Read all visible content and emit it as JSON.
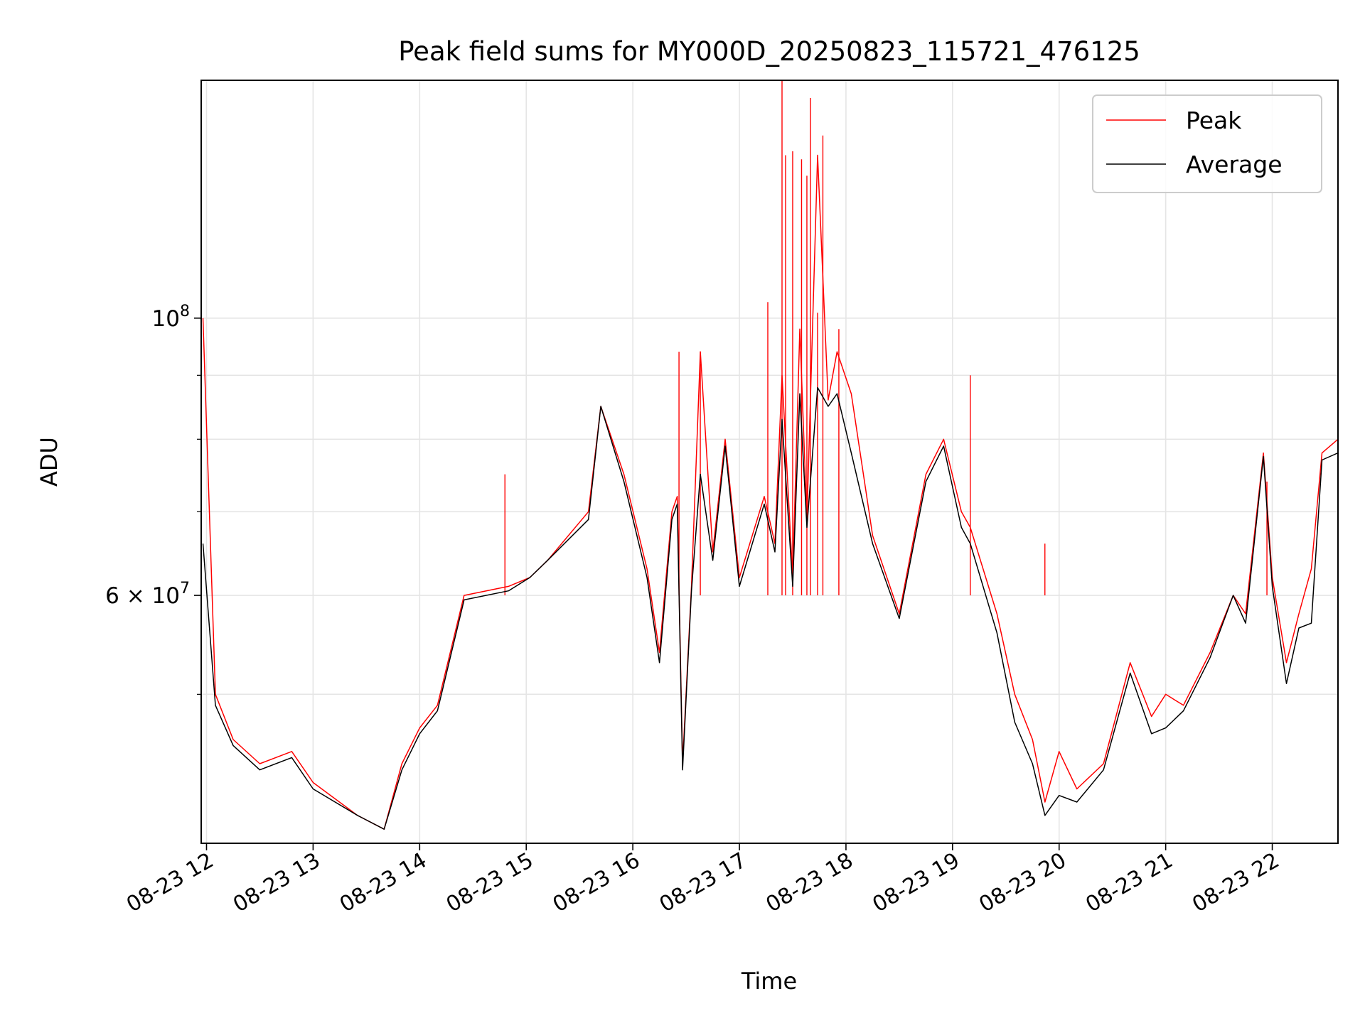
{
  "chart_data": {
    "type": "line",
    "title": "Peak field sums for MY000D_20250823_115721_476125",
    "xlabel": "Time",
    "ylabel": "ADU",
    "y_scale": "log",
    "grid": true,
    "legend_placement": "top-right",
    "x_tick_labels": [
      "08-23 12",
      "08-23 13",
      "08-23 14",
      "08-23 15",
      "08-23 16",
      "08-23 17",
      "08-23 18",
      "08-23 19",
      "08-23 20",
      "08-23 21",
      "08-23 22"
    ],
    "x_tick_dates": [
      "2025-08-23T12:00",
      "2025-08-23T13:00",
      "2025-08-23T14:00",
      "2025-08-23T15:00",
      "2025-08-23T16:00",
      "2025-08-23T17:00",
      "2025-08-23T18:00",
      "2025-08-23T19:00",
      "2025-08-23T20:00",
      "2025-08-23T21:00",
      "2025-08-23T22:00"
    ],
    "xlim": [
      "2025-08-23T11:57",
      "2025-08-23T22:37"
    ],
    "ylim": [
      38000000,
      155000000
    ],
    "y_major_ticks": [
      {
        "value": 100000000,
        "base": "10",
        "exp": "8"
      },
      {
        "value": 60000000,
        "base": "6 × 10",
        "exp": "7"
      }
    ],
    "y_minor_ticks": [
      50000000,
      70000000,
      80000000,
      90000000
    ],
    "series": [
      {
        "name": "Peak",
        "color": "#ff0000",
        "x": [
          "2025-08-23T11:58",
          "2025-08-23T12:05",
          "2025-08-23T12:15",
          "2025-08-23T12:30",
          "2025-08-23T12:48",
          "2025-08-23T13:00",
          "2025-08-23T13:25",
          "2025-08-23T13:40",
          "2025-08-23T13:50",
          "2025-08-23T14:00",
          "2025-08-23T14:10",
          "2025-08-23T14:25",
          "2025-08-23T14:50",
          "2025-08-23T15:02",
          "2025-08-23T15:12",
          "2025-08-23T15:35",
          "2025-08-23T15:42",
          "2025-08-23T15:55",
          "2025-08-23T16:08",
          "2025-08-23T16:15",
          "2025-08-23T16:22",
          "2025-08-23T16:25",
          "2025-08-23T16:28",
          "2025-08-23T16:33",
          "2025-08-23T16:38",
          "2025-08-23T16:45",
          "2025-08-23T16:52",
          "2025-08-23T17:00",
          "2025-08-23T17:14",
          "2025-08-23T17:20",
          "2025-08-23T17:24",
          "2025-08-23T17:30",
          "2025-08-23T17:34",
          "2025-08-23T17:38",
          "2025-08-23T17:44",
          "2025-08-23T17:50",
          "2025-08-23T17:55",
          "2025-08-23T18:03",
          "2025-08-23T18:15",
          "2025-08-23T18:30",
          "2025-08-23T18:45",
          "2025-08-23T18:55",
          "2025-08-23T19:05",
          "2025-08-23T19:10",
          "2025-08-23T19:25",
          "2025-08-23T19:35",
          "2025-08-23T19:45",
          "2025-08-23T19:52",
          "2025-08-23T20:00",
          "2025-08-23T20:10",
          "2025-08-23T20:25",
          "2025-08-23T20:40",
          "2025-08-23T20:52",
          "2025-08-23T21:00",
          "2025-08-23T21:10",
          "2025-08-23T21:25",
          "2025-08-23T21:38",
          "2025-08-23T21:45",
          "2025-08-23T21:55",
          "2025-08-23T22:00",
          "2025-08-23T22:08",
          "2025-08-23T22:15",
          "2025-08-23T22:22",
          "2025-08-23T22:28",
          "2025-08-23T22:37"
        ],
        "y": [
          100000000,
          50000000,
          46000000,
          44000000,
          45000000,
          42500000,
          40000000,
          39000000,
          44000000,
          47000000,
          49000000,
          60000000,
          61000000,
          62000000,
          64000000,
          70000000,
          85000000,
          75000000,
          63000000,
          54000000,
          70000000,
          72000000,
          44000000,
          61000000,
          94000000,
          65000000,
          80000000,
          62000000,
          72000000,
          66000000,
          90000000,
          62000000,
          98000000,
          69000000,
          135000000,
          86000000,
          94000000,
          87000000,
          67000000,
          58000000,
          75000000,
          80000000,
          70000000,
          68000000,
          58000000,
          50000000,
          46000000,
          41000000,
          45000000,
          42000000,
          44000000,
          53000000,
          48000000,
          50000000,
          49000000,
          54000000,
          60000000,
          58000000,
          78000000,
          62000000,
          53000000,
          58000000,
          63000000,
          78000000,
          80000000
        ],
        "spikes": [
          {
            "x": "2025-08-23T16:26",
            "y": 94000000
          },
          {
            "x": "2025-08-23T16:38",
            "y": 92000000
          },
          {
            "x": "2025-08-23T17:16",
            "y": 103000000
          },
          {
            "x": "2025-08-23T17:24",
            "y": 155000000
          },
          {
            "x": "2025-08-23T17:26",
            "y": 135000000
          },
          {
            "x": "2025-08-23T17:30",
            "y": 136000000
          },
          {
            "x": "2025-08-23T17:35",
            "y": 134000000
          },
          {
            "x": "2025-08-23T17:38",
            "y": 130000000
          },
          {
            "x": "2025-08-23T17:40",
            "y": 150000000
          },
          {
            "x": "2025-08-23T17:44",
            "y": 101000000
          },
          {
            "x": "2025-08-23T17:47",
            "y": 140000000
          },
          {
            "x": "2025-08-23T17:56",
            "y": 98000000
          },
          {
            "x": "2025-08-23T19:10",
            "y": 90000000
          },
          {
            "x": "2025-08-23T19:52",
            "y": 66000000
          },
          {
            "x": "2025-08-23T14:48",
            "y": 75000000
          },
          {
            "x": "2025-08-23T21:57",
            "y": 74000000
          }
        ]
      },
      {
        "name": "Average",
        "color": "#000000",
        "x": [
          "2025-08-23T11:58",
          "2025-08-23T12:05",
          "2025-08-23T12:15",
          "2025-08-23T12:30",
          "2025-08-23T12:48",
          "2025-08-23T13:00",
          "2025-08-23T13:25",
          "2025-08-23T13:40",
          "2025-08-23T13:50",
          "2025-08-23T14:00",
          "2025-08-23T14:10",
          "2025-08-23T14:25",
          "2025-08-23T14:50",
          "2025-08-23T15:02",
          "2025-08-23T15:12",
          "2025-08-23T15:35",
          "2025-08-23T15:42",
          "2025-08-23T15:55",
          "2025-08-23T16:08",
          "2025-08-23T16:15",
          "2025-08-23T16:22",
          "2025-08-23T16:25",
          "2025-08-23T16:28",
          "2025-08-23T16:33",
          "2025-08-23T16:38",
          "2025-08-23T16:45",
          "2025-08-23T16:52",
          "2025-08-23T17:00",
          "2025-08-23T17:14",
          "2025-08-23T17:20",
          "2025-08-23T17:24",
          "2025-08-23T17:30",
          "2025-08-23T17:34",
          "2025-08-23T17:38",
          "2025-08-23T17:44",
          "2025-08-23T17:50",
          "2025-08-23T17:55",
          "2025-08-23T18:03",
          "2025-08-23T18:15",
          "2025-08-23T18:30",
          "2025-08-23T18:45",
          "2025-08-23T18:55",
          "2025-08-23T19:05",
          "2025-08-23T19:10",
          "2025-08-23T19:25",
          "2025-08-23T19:35",
          "2025-08-23T19:45",
          "2025-08-23T19:52",
          "2025-08-23T20:00",
          "2025-08-23T20:10",
          "2025-08-23T20:25",
          "2025-08-23T20:40",
          "2025-08-23T20:52",
          "2025-08-23T21:00",
          "2025-08-23T21:10",
          "2025-08-23T21:25",
          "2025-08-23T21:38",
          "2025-08-23T21:45",
          "2025-08-23T21:55",
          "2025-08-23T22:00",
          "2025-08-23T22:08",
          "2025-08-23T22:15",
          "2025-08-23T22:22",
          "2025-08-23T22:28",
          "2025-08-23T22:37"
        ],
        "y": [
          66000000,
          49000000,
          45500000,
          43500000,
          44500000,
          42000000,
          40000000,
          39000000,
          43500000,
          46500000,
          48500000,
          59500000,
          60500000,
          62000000,
          64000000,
          69000000,
          85000000,
          74000000,
          62000000,
          53000000,
          69000000,
          71000000,
          43500000,
          60500000,
          75000000,
          64000000,
          79000000,
          61000000,
          71000000,
          65000000,
          83000000,
          61000000,
          87000000,
          68000000,
          88000000,
          85000000,
          87000000,
          78000000,
          66000000,
          57500000,
          74000000,
          79000000,
          68000000,
          66000000,
          56000000,
          47500000,
          44000000,
          40000000,
          41500000,
          41000000,
          43500000,
          52000000,
          46500000,
          47000000,
          48500000,
          53500000,
          60000000,
          57000000,
          77500000,
          61000000,
          51000000,
          56500000,
          57000000,
          77000000,
          78000000
        ]
      }
    ]
  }
}
